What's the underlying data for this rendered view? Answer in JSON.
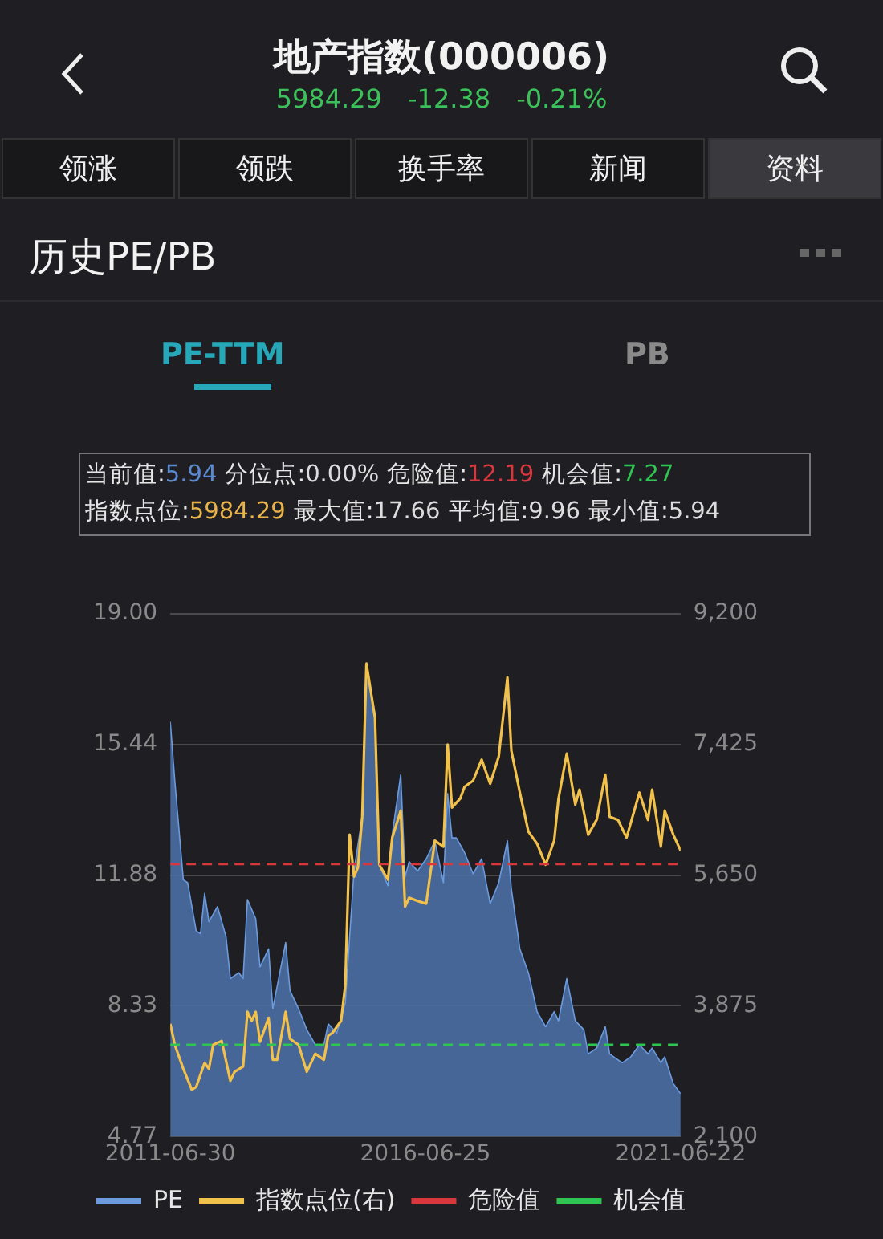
{
  "chart_data": {
    "type": "line",
    "title": "地产指数(000006)",
    "subtitle": "历史PE/PB",
    "annotations": [
      "5984.29",
      "-12.38",
      "-0.21%",
      "领涨",
      "领跌",
      "换手率",
      "新闻",
      "资料",
      "PE-TTM",
      "PB",
      "当前值:5.94",
      "分位点:0.00%",
      "危险值:12.19",
      "机会值:7.27",
      "指数点位:5984.29",
      "最大值:17.66",
      "平均值:9.96",
      "最小值:5.94"
    ],
    "xlim": [
      "2011-06-30",
      "2021-06-22"
    ],
    "xticks": [
      "2011-06-30",
      "2016-06-25",
      "2021-06-22"
    ],
    "ylim": [
      4.77,
      19
    ],
    "yticks": [
      {
        "value": 4.77,
        "label": "4.77"
      },
      {
        "value": 8.33,
        "label": "8.33"
      },
      {
        "value": 11.88,
        "label": "11.88"
      },
      {
        "value": 15.44,
        "label": "15.44"
      },
      {
        "value": 19,
        "label": "19.00"
      }
    ],
    "y2lim": [
      2100,
      9200
    ],
    "y2ticks": [
      {
        "value": 2100,
        "label": "2,100"
      },
      {
        "value": 3875,
        "label": "3,875"
      },
      {
        "value": 5650,
        "label": "5,650"
      },
      {
        "value": 7425,
        "label": "7,425"
      },
      {
        "value": 9200,
        "label": "9,200"
      }
    ],
    "grid": "y",
    "legend": "bottom",
    "marker": "none",
    "ref_lines": [
      {
        "axis": "y",
        "value": 12.19,
        "label": "危险值",
        "color": "#d9363e",
        "line_style": "dashed"
      },
      {
        "axis": "y",
        "value": 7.27,
        "label": "机会值",
        "color": "#2fc552",
        "line_style": "dashed"
      }
    ],
    "series": [
      {
        "name": "PE",
        "type": "area",
        "color": "#6b9bde",
        "x": [
          "2011-06-30",
          "2011-08",
          "2011-10",
          "2011-11",
          "2012-01",
          "2012-02",
          "2012-03",
          "2012-04",
          "2012-06",
          "2012-08",
          "2012-09",
          "2012-11",
          "2012-12",
          "2013-01",
          "2013-03",
          "2013-04",
          "2013-06",
          "2013-07",
          "2013-10",
          "2013-11",
          "2014-01",
          "2014-03",
          "2014-05",
          "2014-07",
          "2014-08",
          "2014-10",
          "2014-12",
          "2015-02",
          "2015-04",
          "2015-05",
          "2015-07",
          "2015-08",
          "2015-10",
          "2015-11",
          "2016-01",
          "2016-02",
          "2016-03",
          "2016-05",
          "2016-07",
          "2016-09",
          "2016-11",
          "2016-12",
          "2017-01",
          "2017-02",
          "2017-04",
          "2017-06",
          "2017-08",
          "2017-10",
          "2017-12",
          "2018-02",
          "2018-03",
          "2018-05",
          "2018-07",
          "2018-09",
          "2018-11",
          "2019-01",
          "2019-02",
          "2019-04",
          "2019-06",
          "2019-08",
          "2019-09",
          "2019-11",
          "2020-01",
          "2020-02",
          "2020-05",
          "2020-07",
          "2020-09",
          "2020-11",
          "2020-12",
          "2021-02",
          "2021-03",
          "2021-05",
          "2021-06-22"
        ],
        "values": [
          16.06,
          14.46,
          11.76,
          11.68,
          10.37,
          10.29,
          11.39,
          10.62,
          11.03,
          10.21,
          9.07,
          9.23,
          9.07,
          11.22,
          10.7,
          9.39,
          9.88,
          8.25,
          10.05,
          8.74,
          8.25,
          7.68,
          7.27,
          7.27,
          7.84,
          7.59,
          8.41,
          12.0,
          13.48,
          17.56,
          16.25,
          12.17,
          11.6,
          12.99,
          14.62,
          11.84,
          12.25,
          12.0,
          12.33,
          12.82,
          11.68,
          14.1,
          12.9,
          12.9,
          12.5,
          11.92,
          12.33,
          11.11,
          11.68,
          12.82,
          11.52,
          9.88,
          9.23,
          8.17,
          7.76,
          8.17,
          7.92,
          9.07,
          7.92,
          7.68,
          7.02,
          7.18,
          7.76,
          7.02,
          6.78,
          6.94,
          7.27,
          7.02,
          7.18,
          6.78,
          6.94,
          6.21,
          5.94
        ]
      },
      {
        "name": "指数点位(右)",
        "type": "line",
        "axis": "y2",
        "color": "#f2c14b",
        "x": [
          "2011-06-30",
          "2011-08",
          "2011-10",
          "2011-12",
          "2012-01",
          "2012-03",
          "2012-04",
          "2012-05",
          "2012-07",
          "2012-09",
          "2012-10",
          "2012-12",
          "2013-01",
          "2013-02",
          "2013-03",
          "2013-04",
          "2013-06",
          "2013-07",
          "2013-08",
          "2013-10",
          "2013-11",
          "2014-01",
          "2014-03",
          "2014-05",
          "2014-07",
          "2014-08",
          "2014-09",
          "2014-11",
          "2014-12",
          "2015-01",
          "2015-02",
          "2015-03",
          "2015-04",
          "2015-05",
          "2015-07",
          "2015-08",
          "2015-10",
          "2015-11",
          "2016-01",
          "2016-02",
          "2016-03",
          "2016-05",
          "2016-07",
          "2016-09",
          "2016-11",
          "2016-12",
          "2017-01",
          "2017-03",
          "2017-04",
          "2017-06",
          "2017-08",
          "2017-10",
          "2017-12",
          "2018-02",
          "2018-03",
          "2018-05",
          "2018-07",
          "2018-09",
          "2018-11",
          "2019-01",
          "2019-02",
          "2019-04",
          "2019-06",
          "2019-07",
          "2019-09",
          "2019-11",
          "2020-01",
          "2020-02",
          "2020-04",
          "2020-06",
          "2020-09",
          "2020-11",
          "2020-12",
          "2021-02",
          "2021-03",
          "2021-05",
          "2021-06-22"
        ],
        "values": [
          3632,
          3347,
          3021,
          2736,
          2776,
          3102,
          3020,
          3347,
          3400,
          2858,
          2980,
          3050,
          3795,
          3673,
          3795,
          3388,
          3714,
          3143,
          3143,
          3795,
          3428,
          3347,
          2980,
          3225,
          3143,
          3469,
          3510,
          3673,
          4162,
          6200,
          5630,
          5752,
          6445,
          8523,
          7790,
          5792,
          5589,
          6159,
          6526,
          5222,
          5344,
          5300,
          5263,
          6119,
          6037,
          7423,
          6567,
          6690,
          6850,
          6934,
          7219,
          6890,
          7260,
          8336,
          7341,
          6771,
          6241,
          6078,
          5792,
          6119,
          6689,
          7301,
          6608,
          6811,
          6200,
          6404,
          7015,
          6445,
          6400,
          6159,
          6771,
          6400,
          6811,
          6037,
          6526,
          6200,
          5984
        ]
      }
    ]
  }
}
